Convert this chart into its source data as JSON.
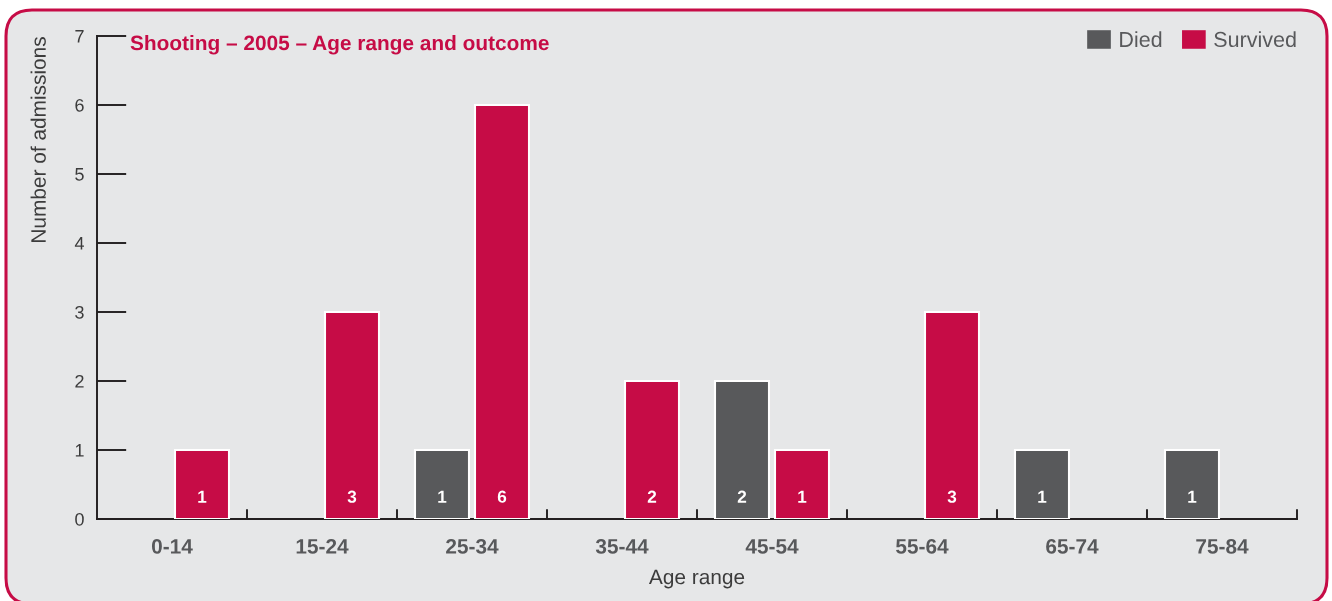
{
  "chart_data": {
    "type": "bar",
    "title": "Shooting – 2005 – Age range and outcome",
    "xlabel": "Age range",
    "ylabel": "Number of admissions",
    "categories": [
      "0-14",
      "15-24",
      "25-34",
      "35-44",
      "45-54",
      "55-64",
      "65-74",
      "75-84"
    ],
    "series": [
      {
        "name": "Died",
        "color": "#58595b",
        "values": [
          null,
          null,
          1,
          null,
          2,
          null,
          1,
          1
        ]
      },
      {
        "name": "Survived",
        "color": "#c60c46",
        "values": [
          1,
          3,
          6,
          2,
          1,
          3,
          null,
          null
        ]
      }
    ],
    "ylim": [
      0,
      7
    ],
    "yticks": [
      0,
      1,
      2,
      3,
      4,
      5,
      6,
      7
    ],
    "data_labels": true,
    "legend": "top right"
  }
}
